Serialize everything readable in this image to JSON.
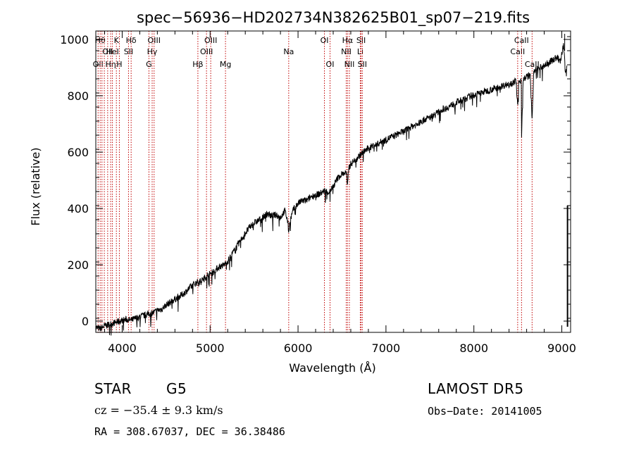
{
  "chart_data": {
    "type": "line",
    "title": "spec−56936−HD202734N382625B01_sp07−219.fits",
    "xlabel": "Wavelength (Å)",
    "ylabel": "Flux (relative)",
    "xlim": [
      3700,
      9100
    ],
    "ylim": [
      -40,
      1030
    ],
    "xticks": [
      4000,
      5000,
      6000,
      7000,
      8000,
      9000
    ],
    "yticks": [
      0,
      200,
      400,
      600,
      800,
      1000
    ],
    "grid": false,
    "series": [
      {
        "x": [
          3700,
          3750,
          3800,
          3850,
          3900,
          3950,
          4000,
          4050,
          4100,
          4150,
          4200,
          4250,
          4300,
          4350,
          4400,
          4450,
          4500,
          4550,
          4600,
          4650,
          4700,
          4750,
          4800,
          4850,
          4900,
          4950,
          5000,
          5050,
          5100,
          5150,
          5200,
          5250,
          5300,
          5350,
          5400,
          5450,
          5500,
          5550,
          5600,
          5650,
          5700,
          5750,
          5800,
          5850,
          5880,
          5895,
          5910,
          5950,
          6000,
          6050,
          6100,
          6150,
          6200,
          6250,
          6300,
          6350,
          6400,
          6450,
          6500,
          6550,
          6563,
          6575,
          6600,
          6650,
          6700,
          6750,
          6800,
          6850,
          6900,
          6950,
          7000,
          7050,
          7100,
          7150,
          7200,
          7250,
          7300,
          7350,
          7400,
          7450,
          7500,
          7550,
          7600,
          7650,
          7700,
          7750,
          7800,
          7850,
          7900,
          7950,
          8000,
          8050,
          8100,
          8150,
          8200,
          8250,
          8300,
          8350,
          8400,
          8450,
          8480,
          8498,
          8510,
          8540,
          8542,
          8560,
          8600,
          8640,
          8662,
          8680,
          8700,
          8750,
          8800,
          8850,
          8900,
          8950,
          8980,
          9000,
          9020,
          9040,
          9060
        ],
        "y": [
          -20,
          -25,
          -15,
          -10,
          -5,
          0,
          5,
          8,
          5,
          12,
          18,
          22,
          28,
          32,
          40,
          45,
          60,
          70,
          80,
          90,
          100,
          115,
          130,
          140,
          145,
          160,
          170,
          180,
          195,
          200,
          215,
          240,
          265,
          290,
          315,
          335,
          350,
          360,
          370,
          385,
          375,
          380,
          370,
          395,
          360,
          320,
          360,
          400,
          420,
          430,
          430,
          445,
          450,
          455,
          465,
          460,
          480,
          510,
          525,
          530,
          475,
          545,
          560,
          575,
          590,
          605,
          615,
          625,
          630,
          640,
          645,
          655,
          660,
          670,
          675,
          685,
          695,
          700,
          710,
          720,
          725,
          735,
          745,
          755,
          760,
          770,
          780,
          785,
          790,
          800,
          805,
          810,
          815,
          820,
          825,
          830,
          835,
          840,
          845,
          850,
          855,
          760,
          850,
          860,
          660,
          860,
          870,
          875,
          720,
          880,
          895,
          900,
          910,
          920,
          930,
          940,
          920,
          950,
          980,
          890,
          920
        ]
      }
    ],
    "lines": [
      {
        "w": 3726,
        "row": 3,
        "label": "OII"
      },
      {
        "w": 3750,
        "row": 1,
        "label": "Hθ"
      },
      {
        "w": 3770,
        "row": 1,
        "label": ""
      },
      {
        "w": 3797,
        "row": 3,
        "label": ""
      },
      {
        "w": 3835,
        "row": 2,
        "label": "OII"
      },
      {
        "w": 3869,
        "row": 3,
        "label": "Hη"
      },
      {
        "w": 3889,
        "row": 2,
        "label": "HeI"
      },
      {
        "w": 3934,
        "row": 1,
        "label": "K"
      },
      {
        "w": 3968,
        "row": 3,
        "label": "H"
      },
      {
        "w": 4072,
        "row": 2,
        "label": "SII"
      },
      {
        "w": 4102,
        "row": 1,
        "label": "Hδ"
      },
      {
        "w": 4304,
        "row": 3,
        "label": "G"
      },
      {
        "w": 4341,
        "row": 2,
        "label": "Hγ"
      },
      {
        "w": 4363,
        "row": 1,
        "label": "OIII"
      },
      {
        "w": 4861,
        "row": 3,
        "label": "Hβ"
      },
      {
        "w": 4959,
        "row": 2,
        "label": "OIII"
      },
      {
        "w": 5007,
        "row": 1,
        "label": "OIII"
      },
      {
        "w": 5175,
        "row": 3,
        "label": "Mg"
      },
      {
        "w": 5894,
        "row": 2,
        "label": "Na"
      },
      {
        "w": 6300,
        "row": 1,
        "label": "OI"
      },
      {
        "w": 6364,
        "row": 3,
        "label": "OI"
      },
      {
        "w": 6548,
        "row": 2,
        "label": "NII"
      },
      {
        "w": 6563,
        "row": 1,
        "label": "Hα"
      },
      {
        "w": 6584,
        "row": 3,
        "label": "NII"
      },
      {
        "w": 6708,
        "row": 2,
        "label": "Li"
      },
      {
        "w": 6717,
        "row": 1,
        "label": "SII"
      },
      {
        "w": 6731,
        "row": 3,
        "label": "SII"
      },
      {
        "w": 8498,
        "row": 2,
        "label": "CaII"
      },
      {
        "w": 8542,
        "row": 1,
        "label": "CaII"
      },
      {
        "w": 8662,
        "row": 3,
        "label": "CaII"
      }
    ]
  },
  "info": {
    "class": "STAR",
    "subclass": "G5",
    "survey": "LAMOST DR5",
    "cz": "cz = −35.4 ± 9.3 km/s",
    "obs_date": "Obs−Date: 20141005",
    "radec": "RA = 308.67037, DEC =  36.38486"
  },
  "colors": {
    "spectrum": "#000000",
    "line_markers": "#c00000",
    "axes": "#000000",
    "background": "#ffffff"
  }
}
